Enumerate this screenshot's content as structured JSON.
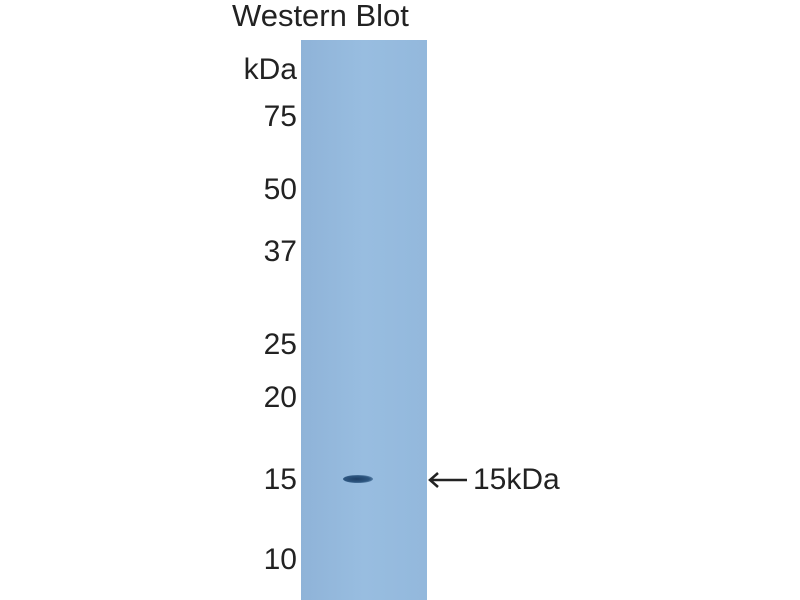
{
  "title": "Western Blot",
  "unit_label": "kDa",
  "markers": [
    "75",
    "50",
    "37",
    "25",
    "20",
    "15",
    "10"
  ],
  "band": {
    "annotation": "15kDa",
    "color": "#1e3f66"
  },
  "lane_color": "#95bade",
  "icons": {
    "arrow": "arrow-left-icon"
  }
}
